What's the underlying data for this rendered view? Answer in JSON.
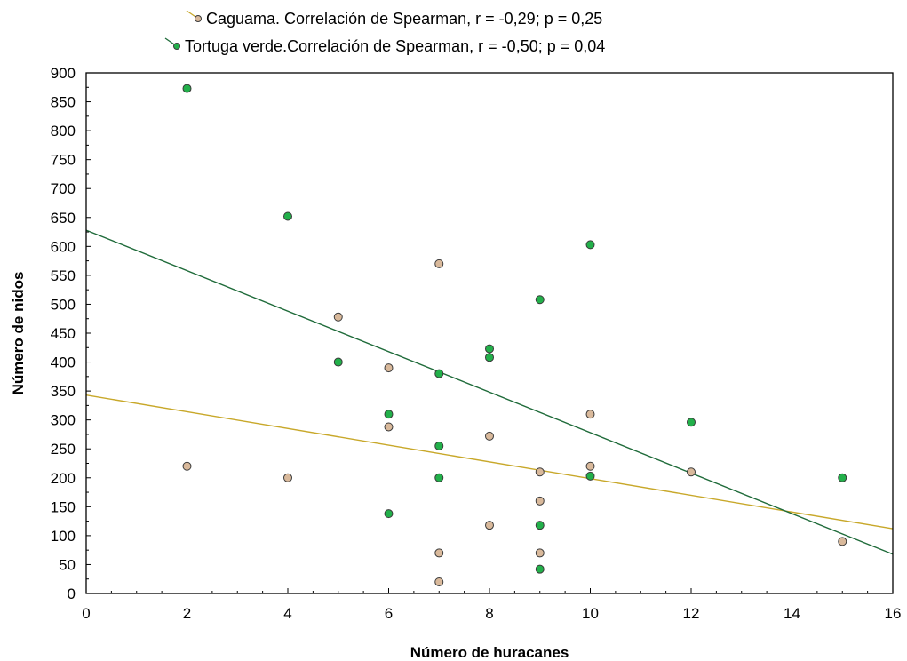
{
  "chart_data": {
    "type": "scatter",
    "xlabel": "Número de huracanes",
    "ylabel": "Número de nidos",
    "xlim": [
      0,
      16
    ],
    "ylim": [
      0,
      900
    ],
    "xticks": [
      0,
      2,
      4,
      6,
      8,
      10,
      12,
      14,
      16
    ],
    "yticks": [
      0,
      50,
      100,
      150,
      200,
      250,
      300,
      350,
      400,
      450,
      500,
      550,
      600,
      650,
      700,
      750,
      800,
      850,
      900
    ],
    "grid": false,
    "legend_position": "top-center",
    "series": [
      {
        "name": "Caguama. Correlación de Spearman, r = -0,29; p = 0,25",
        "marker_color": "#d9b99b",
        "line_color": "#c8a82a",
        "fit_line": [
          [
            0,
            343
          ],
          [
            16,
            112
          ]
        ],
        "points": [
          [
            2,
            220
          ],
          [
            4,
            200
          ],
          [
            5,
            478
          ],
          [
            6,
            390
          ],
          [
            6,
            288
          ],
          [
            7,
            570
          ],
          [
            7,
            70
          ],
          [
            7,
            20
          ],
          [
            8,
            272
          ],
          [
            8,
            118
          ],
          [
            9,
            210
          ],
          [
            9,
            160
          ],
          [
            9,
            70
          ],
          [
            10,
            310
          ],
          [
            10,
            220
          ],
          [
            12,
            210
          ],
          [
            15,
            90
          ]
        ]
      },
      {
        "name": "Tortuga verde.Correlación de Spearman, r = -0,50; p = 0,04",
        "marker_color": "#22b04a",
        "line_color": "#1f6b3a",
        "fit_line": [
          [
            0,
            628
          ],
          [
            16,
            68
          ]
        ],
        "points": [
          [
            2,
            873
          ],
          [
            4,
            652
          ],
          [
            5,
            400
          ],
          [
            6,
            310
          ],
          [
            6,
            138
          ],
          [
            7,
            380
          ],
          [
            7,
            255
          ],
          [
            7,
            200
          ],
          [
            8,
            423
          ],
          [
            8,
            408
          ],
          [
            9,
            508
          ],
          [
            9,
            118
          ],
          [
            9,
            42
          ],
          [
            10,
            603
          ],
          [
            10,
            203
          ],
          [
            12,
            296
          ],
          [
            15,
            200
          ]
        ]
      }
    ]
  }
}
